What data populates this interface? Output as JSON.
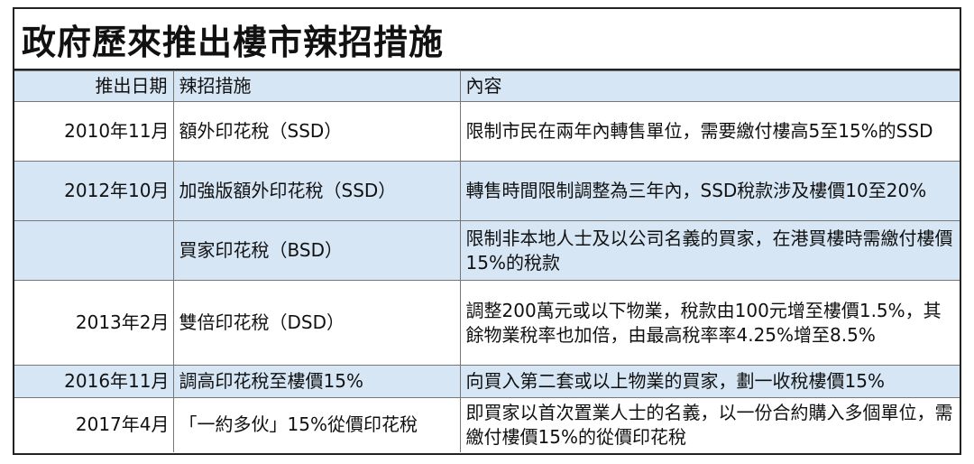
{
  "title": "政府歷來推出樓市辣招措施",
  "headers": [
    "推出日期",
    "辣招措施",
    "內容"
  ],
  "rows": [
    {
      "date": "2010年11月",
      "measure": "額外印花稅（SSD）",
      "content": "限制市民在兩年內轉售單位，需要繳付樓高5至15%的SSD"
    },
    {
      "date": "2012年10月",
      "measure": "加強版額外印花稅（SSD）",
      "content": "轉售時間限制調整為三年內，SSD稅款涉及樓價10至20%"
    },
    {
      "date": "",
      "measure": "買家印花稅（BSD）",
      "content": "限制非本地人士及以公司名義的買家，在港買樓時需繳付樓價15%的稅款"
    },
    {
      "date": "2013年2月",
      "measure": "雙倍印花稅（DSD）",
      "content": "調整200萬元或以下物業，稅款由100元增至樓價1.5%，其餘物業稅率也加倍，由最高稅率率4.25%增至8.5%"
    },
    {
      "date": "2016年11月",
      "measure": "調高印花稅至樓價15%",
      "content": "向買入第二套或以上物業的買家，劃一收稅樓價15%"
    },
    {
      "date": "2017年4月",
      "measure": "「一約多伙」15%從價印花稅",
      "content": "即買家以首次置業人士的名義，以一份合約購入多個單位，需繳付樓價15%的從價印花稅"
    }
  ]
}
